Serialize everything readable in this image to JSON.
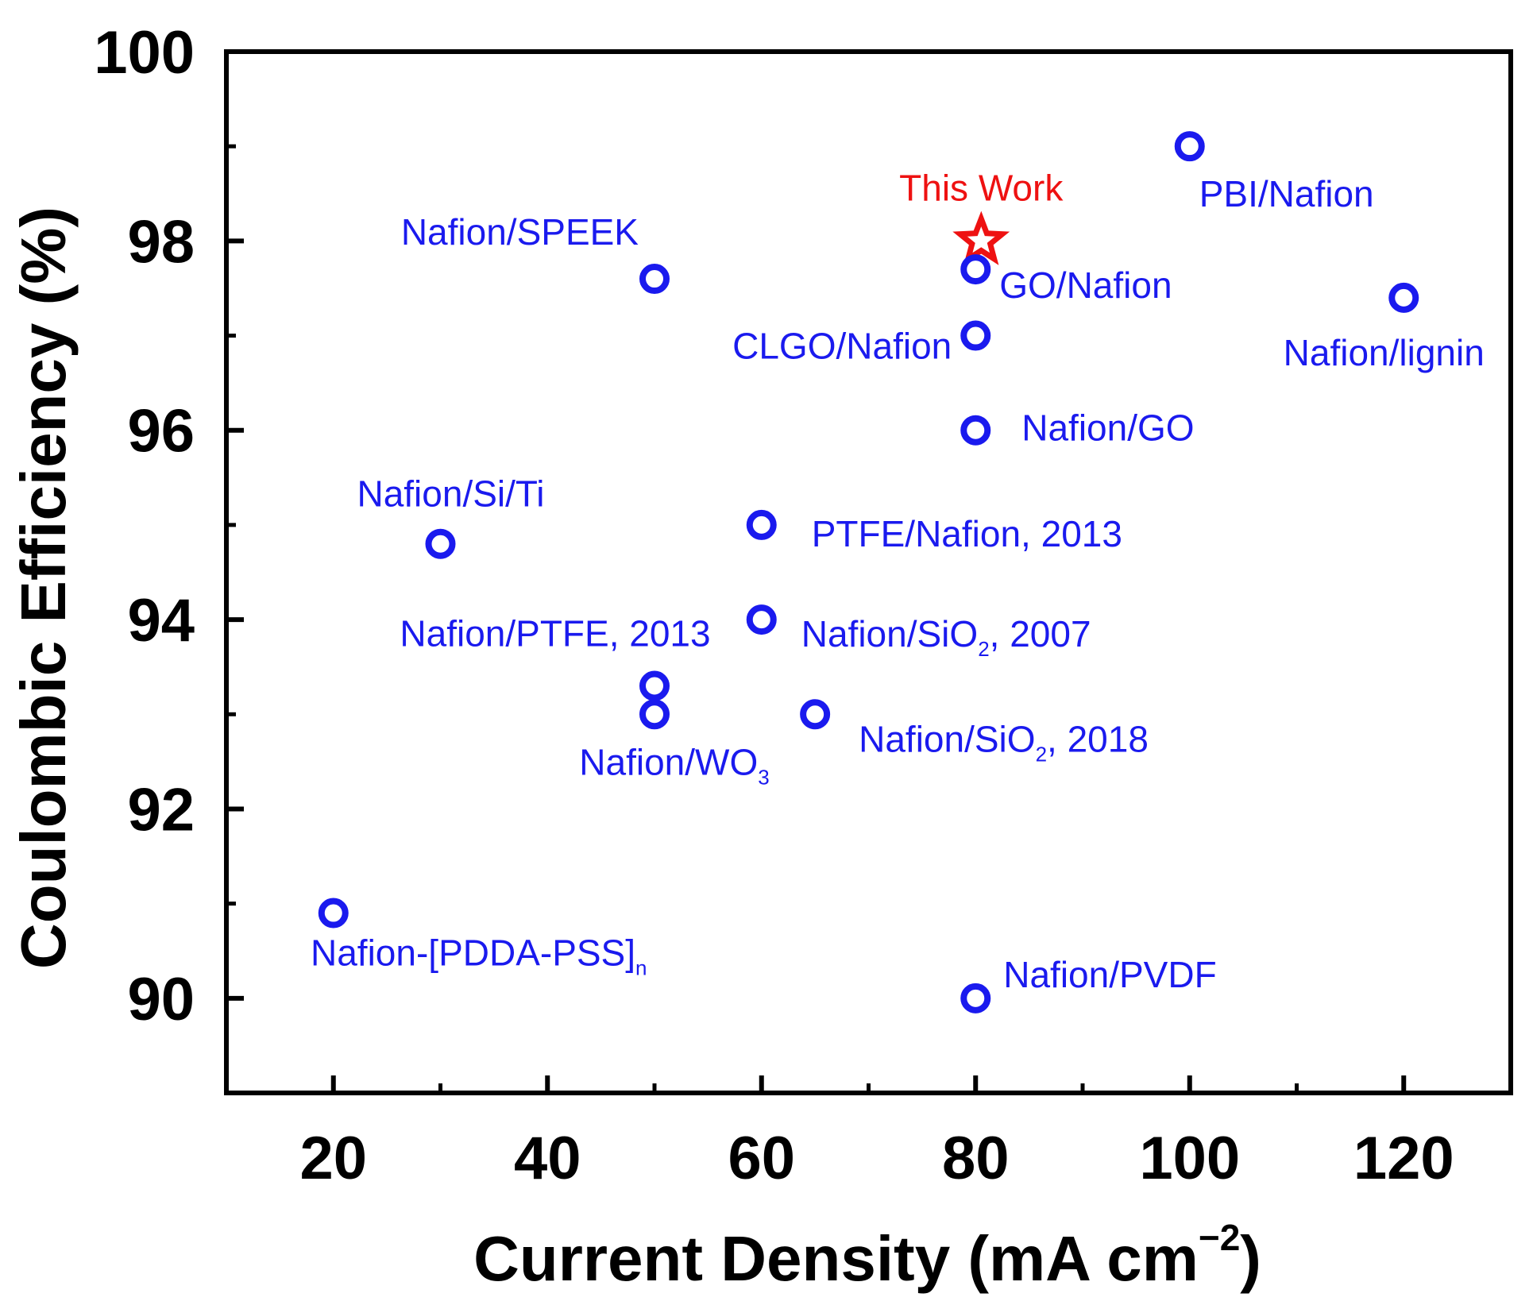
{
  "chart_data": {
    "type": "scatter",
    "xlabel": "Current Density (mA cm⁻²)",
    "xlabel_main": "Current Density (mA cm",
    "xlabel_sup": "−2",
    "xlabel_close": ")",
    "ylabel": "Coulombic Efficiency (%)",
    "xlim": [
      10,
      130
    ],
    "ylim": [
      89,
      100
    ],
    "xticks": [
      20,
      40,
      60,
      80,
      100,
      120
    ],
    "yticks": [
      90,
      92,
      94,
      96,
      98,
      100
    ],
    "x_minor_step": 10,
    "y_minor_step": 1,
    "grid": false,
    "colors": {
      "series": "#1a1aee",
      "highlight": "#ee1111",
      "axis": "#000000"
    },
    "points": [
      {
        "x": 80,
        "y": 98.0,
        "label": "This Work",
        "marker": "star",
        "highlight": true
      },
      {
        "x": 100,
        "y": 99.0,
        "label": "PBI/Nafion",
        "marker": "circle"
      },
      {
        "x": 50,
        "y": 97.6,
        "label": "Nafion/SPEEK",
        "marker": "circle"
      },
      {
        "x": 80,
        "y": 97.7,
        "label": "GO/Nafion",
        "marker": "circle"
      },
      {
        "x": 80,
        "y": 97.0,
        "label": "CLGO/Nafion",
        "marker": "circle"
      },
      {
        "x": 120,
        "y": 97.4,
        "label": "Nafion/lignin",
        "marker": "circle"
      },
      {
        "x": 80,
        "y": 96.0,
        "label": "Nafion/GO",
        "marker": "circle"
      },
      {
        "x": 30,
        "y": 94.8,
        "label": "Nafion/Si/Ti",
        "marker": "circle"
      },
      {
        "x": 60,
        "y": 95.0,
        "label": "PTFE/Nafion, 2013",
        "marker": "circle"
      },
      {
        "x": 60,
        "y": 94.0,
        "label": "Nafion/SiO",
        "sub": "2",
        "suffix": ", 2007",
        "marker": "circle"
      },
      {
        "x": 50,
        "y": 93.3,
        "label": "Nafion/PTFE, 2013",
        "marker": "circle"
      },
      {
        "x": 50,
        "y": 93.0,
        "label": "Nafion/WO",
        "sub": "3",
        "suffix": "",
        "marker": "circle"
      },
      {
        "x": 65,
        "y": 93.0,
        "label": "Nafion/SiO",
        "sub": "2",
        "suffix": ", 2018",
        "marker": "circle"
      },
      {
        "x": 20,
        "y": 90.9,
        "label": "Nafion-[PDDA-PSS]",
        "sub": "n",
        "suffix": "",
        "marker": "circle"
      },
      {
        "x": 80,
        "y": 90.0,
        "label": "Nafion/PVDF",
        "marker": "circle"
      }
    ]
  }
}
